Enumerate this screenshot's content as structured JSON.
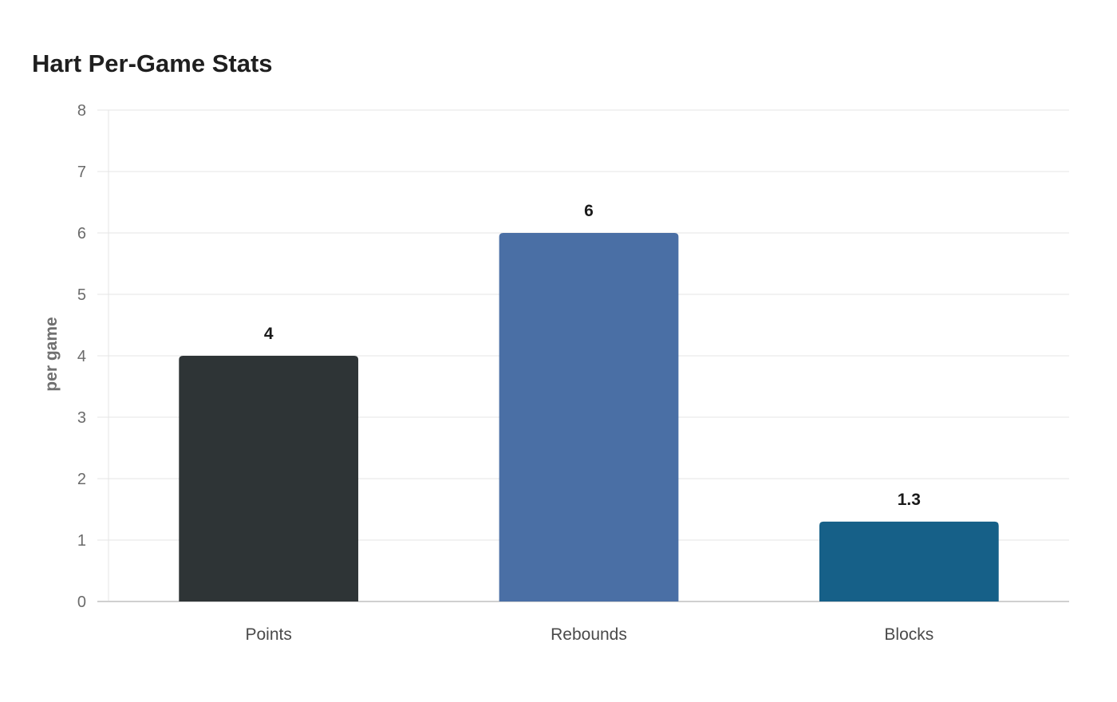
{
  "chart_data": {
    "type": "bar",
    "title": "Hart Per-Game Stats",
    "xlabel": "",
    "ylabel": "per game",
    "categories": [
      "Points",
      "Rebounds",
      "Blocks"
    ],
    "values": [
      4,
      6,
      1.3
    ],
    "data_labels": [
      "4",
      "6",
      "1.3"
    ],
    "colors": [
      "#2e3436",
      "#4a6fa5",
      "#166088"
    ],
    "ylim": [
      0,
      8
    ],
    "yticks": [
      0,
      1,
      2,
      3,
      4,
      5,
      6,
      7,
      8
    ],
    "grid": true,
    "legend": "none"
  }
}
